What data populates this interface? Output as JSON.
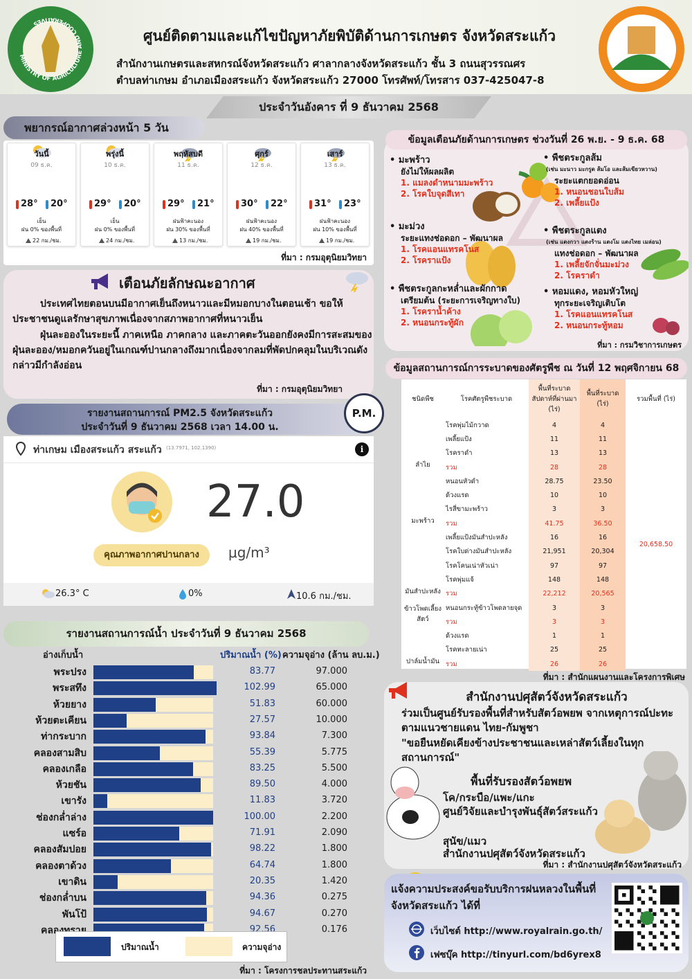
{
  "header": {
    "logo_text": "MINISTRY OF AGRICULTURE AND COOPERATIVES",
    "title": "ศูนย์ติดตามและแก้ไขปัญหาภัยพิบัติด้านการเกษตร จังหวัดสระแก้ว",
    "address_line1": "สำนักงานเกษตรและสหกรณ์จังหวัดสระแก้ว ศาลากลางจังหวัดสระแก้ว ชั้น 3 ถนนสุวรรณศร",
    "address_line2": "ตำบลท่าเกษม อำเภอเมืองสระแก้ว จังหวัดสระแก้ว 27000 โทรศัพท์/โทรสาร 037-425047-8",
    "date": "ประจำวันอังคาร ที่ 9 ธันวาคม 2568"
  },
  "weather": {
    "title": "พยากรณ์อากาศล่วงหน้า 5 วัน",
    "days": [
      {
        "day": "วันนี้",
        "date": "09 ธ.ค.",
        "max": "28°",
        "min": "20°",
        "condition": "เย็น",
        "rain": "ฝน 0% ของพื้นที่",
        "wind": "22 กม./ชม."
      },
      {
        "day": "พรุ่งนี้",
        "date": "10 ธ.ค.",
        "max": "29°",
        "min": "20°",
        "condition": "เย็น",
        "rain": "ฝน 0% ของพื้นที่",
        "wind": "24 กม./ชม."
      },
      {
        "day": "พฤหัสบดี",
        "date": "11 ธ.ค.",
        "max": "29°",
        "min": "21°",
        "condition": "ฝนฟ้าคะนอง",
        "rain": "ฝน 30% ของพื้นที่",
        "wind": "13 กม./ชม."
      },
      {
        "day": "ศุกร์",
        "date": "12 ธ.ค.",
        "max": "30°",
        "min": "22°",
        "condition": "ฝนฟ้าคะนอง",
        "rain": "ฝน 40% ของพื้นที่",
        "wind": "19 กม./ชม."
      },
      {
        "day": "เสาร์",
        "date": "13 ธ.ค.",
        "max": "31°",
        "min": "23°",
        "condition": "ฝนฟ้าคะนอง",
        "rain": "ฝน 10% ของพื้นที่",
        "wind": "19 กม./ชม."
      }
    ],
    "source": "ที่มา : กรมอุตุนิยมวิทยา"
  },
  "alert": {
    "title": "เตือนภัยลักษณะอากาศ",
    "paragraphs": [
      "ประเทศไทยตอนบนมีอากาศเย็นถึงหนาวและมีหมอกบางในตอนเช้า ขอให้ประชาชนดูแลรักษาสุขภาพเนื่องจากสภาพอากาศที่หนาวเย็น",
      "ฝุ่นละอองในระยะนี้ ภาคเหนือ ภาคกลาง และภาคตะวันออกยังคงมีการสะสมของฝุ่นละออง/หมอกควันอยู่ในเกณฑ์ปานกลางถึงมากเนื่องจากลมที่พัดปกคลุมในบริเวณดังกล่าวมีกำลังอ่อน"
    ],
    "source": "ที่มา : กรมอุตุนิยมวิทยา"
  },
  "pm25": {
    "title_line1": "รายงานสถานการณ์ PM2.5 จังหวัดสระแก้ว",
    "title_line2": "ประจำวันที่ 9 ธันวาคม 2568 เวลา 14.00 น.",
    "badge": "P.M.",
    "location": "ท่าเกษม เมืองสระแก้ว สระแก้ว",
    "coords": "(13.7971, 102.1390)",
    "value": "27.0",
    "unit": "μg/m³",
    "quality": "คุณภาพอากาศปานกลาง",
    "temperature": "26.3° C",
    "rain": "0%",
    "wind": "10.6 กม./ชม."
  },
  "water": {
    "title": "รายงานสถานการณ์น้ำ ประจำวันที่ 9 ธันวาคม 2568",
    "headers": [
      "อ่างเก็บน้ำ",
      "ปริมาณน้ำ (%)",
      "ความจุอ่าง (ล้าน ลบ.ม.)"
    ],
    "bar_color": "#1f3f86",
    "track_color": "#fbeec8",
    "rows": [
      {
        "name": "พระปรง",
        "percent": 83.77,
        "percent_label": "83.77",
        "capacity": "97.000"
      },
      {
        "name": "พระสทึง",
        "percent": 102.99,
        "percent_label": "102.99",
        "capacity": "65.000"
      },
      {
        "name": "ห้วยยาง",
        "percent": 51.83,
        "percent_label": "51.83",
        "capacity": "60.000"
      },
      {
        "name": "ห้วยตะเคียน",
        "percent": 27.57,
        "percent_label": "27.57",
        "capacity": "10.000"
      },
      {
        "name": "ท่ากระบาก",
        "percent": 93.84,
        "percent_label": "93.84",
        "capacity": "7.300"
      },
      {
        "name": "คลองสามสิบ",
        "percent": 55.39,
        "percent_label": "55.39",
        "capacity": "5.775"
      },
      {
        "name": "คลองเกลือ",
        "percent": 83.25,
        "percent_label": "83.25",
        "capacity": "5.500"
      },
      {
        "name": "ห้วยชัน",
        "percent": 89.5,
        "percent_label": "89.50",
        "capacity": "4.000"
      },
      {
        "name": "เขารัง",
        "percent": 11.83,
        "percent_label": "11.83",
        "capacity": "3.720"
      },
      {
        "name": "ช่องกล่ำล่าง",
        "percent": 100,
        "percent_label": "100.00",
        "capacity": "2.200"
      },
      {
        "name": "แซร์อ",
        "percent": 71.91,
        "percent_label": "71.91",
        "capacity": "2.090"
      },
      {
        "name": "คลองสัมปอย",
        "percent": 98.22,
        "percent_label": "98.22",
        "capacity": "1.800"
      },
      {
        "name": "คลองตาด้วง",
        "percent": 64.74,
        "percent_label": "64.74",
        "capacity": "1.800"
      },
      {
        "name": "เขาดิน",
        "percent": 20.35,
        "percent_label": "20.35",
        "capacity": "1.420"
      },
      {
        "name": "ช่องกล่ำบน",
        "percent": 94.36,
        "percent_label": "94.36",
        "capacity": "0.275"
      },
      {
        "name": "พันโป้",
        "percent": 94.67,
        "percent_label": "94.67",
        "capacity": "0.270"
      },
      {
        "name": "คลองทราย",
        "percent": 92.56,
        "percent_label": "92.56",
        "capacity": "0.176"
      }
    ],
    "legend": [
      "ปริมาณน้ำ",
      "ความจุอ่าง"
    ],
    "source": "ที่มา : โครงการชลประทานสระแก้ว"
  },
  "hazard": {
    "title": "ข้อมูลเตือนภัยด้านการเกษตร ช่วงวันที่ 26 พ.ย. - 9 ธ.ค. 68",
    "items": [
      {
        "crop": "มะพร้าว",
        "stage": "ยังไม่ให้ผลผลิต",
        "issues": [
          "1. แมลงดำหนามมะพร้าว",
          "2. โรคใบจุดสีเทา"
        ]
      },
      {
        "crop": "พืชตระกูลส้ม",
        "note": "(เช่น มะนาว มะกรูด ส้มโอ และส้มเขียวหวาน)",
        "stage": "ระยะแตกยอดอ่อน",
        "issues": [
          "1. หนอนชอนใบส้ม",
          "2. เพลี้ยแป้ง"
        ]
      },
      {
        "crop": "มะม่วง",
        "stage": "ระยะแทงช่อดอก – พัฒนาผล",
        "issues": [
          "1. โรคแอนแทรคโนส",
          "2. โรคราแป้ง"
        ]
      },
      {
        "crop": "พืชตระกูลแตง",
        "note": "(เช่น แตงกวา แตงร้าน แตงโม แตงไทย เมล่อน)",
        "stage": "แทงช่อดอก – พัฒนาผล",
        "issues": [
          "1. เพลี้ยจักจั่นมะม่วง",
          "2. โรคราดำ"
        ]
      },
      {
        "crop": "พืชตระกูลกะหล่ำและผักกาด",
        "stage": "เตรียมต้น (ระยะการเจริญทางใบ)",
        "issues": [
          "1. โรคราน้ำค้าง",
          "2. หนอนกระทู้ผัก"
        ]
      },
      {
        "crop": "หอมแดง, หอมหัวใหญ่",
        "stage": "ทุกระยะเจริญเติบโต",
        "issues": [
          "1. โรคแอนแทรคโนส",
          "2. หนอนกระทู้หอม"
        ]
      }
    ],
    "source": "ที่มา : กรมวิชาการเกษตร"
  },
  "outbreak": {
    "title": "ข้อมูลสถานการณ์การระบาดของศัตรูพืช ณ วันที่ 12 พฤศจิกายน 68",
    "headers": [
      "ชนิดพืช",
      "โรคศัตรูพืชระบาด",
      "พื้นที่ระบาดสัปดาห์ที่ผ่านมา (ไร่)",
      "พื้นที่ระบาด (ไร่)",
      "รวมพื้นที่ (ไร่)"
    ],
    "groups": [
      {
        "crop": "ลำไย",
        "rows": [
          [
            "โรคพุ่มไม้กวาด",
            "4",
            "4"
          ],
          [
            "เพลี้ยแป้ง",
            "11",
            "11"
          ],
          [
            "โรคราดำ",
            "13",
            "13"
          ],
          [
            "รวม",
            "28",
            "28"
          ]
        ]
      },
      {
        "crop": "มะพร้าว",
        "rows": [
          [
            "หนอนหัวดำ",
            "28.75",
            "23.50"
          ],
          [
            "ด้วงแรด",
            "10",
            "10"
          ],
          [
            "ไรสี่ขามะพร้าว",
            "3",
            "3"
          ],
          [
            "รวม",
            "41.75",
            "36.50"
          ]
        ]
      },
      {
        "crop": "มันสำปะหลัง",
        "rows": [
          [
            "เพลี้ยแป้งมันสำปะหลัง",
            "16",
            "16"
          ],
          [
            "โรคใบด่างมันสำปะหลัง",
            "21,951",
            "20,304"
          ],
          [
            "โรคโคนเน่าหัวเน่า",
            "97",
            "97"
          ],
          [
            "โรคพุ่มแจ้",
            "148",
            "148"
          ],
          [
            "รวม",
            "22,212",
            "20,565"
          ]
        ]
      },
      {
        "crop": "ข้าวโพดเลี้ยงสัตว์",
        "rows": [
          [
            "หนอนกระทู้ข้าวโพดลายจุด",
            "3",
            "3"
          ],
          [
            "รวม",
            "3",
            "3"
          ]
        ]
      },
      {
        "crop": "ปาล์มน้ำมัน",
        "rows": [
          [
            "ด้วงแรด",
            "1",
            "1"
          ],
          [
            "โรคทะลายเน่า",
            "25",
            "25"
          ],
          [
            "รวม",
            "26",
            "26"
          ]
        ]
      }
    ],
    "total_area": "20,658.50",
    "source": "ที่มา : สำนักแผนงานและโครงการพิเศษ"
  },
  "livestock": {
    "title": "สำนักงานปศุสัตว์จังหวัดสระแก้ว",
    "intro": "ร่วมเป็นศูนย์รับรองพื้นที่สำหรับสัตว์อพยพ จากเหตุการณ์ปะทะตามแนวชายแดน ไทย-กัมพูชา",
    "quote": "\"ขอยืนหยัดเคียงข้างประชาชนและเหล่าสัตว์เลี้ยงในทุกสถานการณ์\"",
    "subtitle": "พื้นที่รับรองสัตว์อพยพ",
    "groups": [
      {
        "animals": "โค/กระบือ/แพะ/แกะ",
        "place": "ศูนย์วิจัยและบำรุงพันธุ์สัตว์สระแก้ว"
      },
      {
        "animals": "สุนัข/แมว",
        "place": "สำนักงานปศุสัตว์จังหวัดสระแก้ว"
      }
    ],
    "source": "ที่มา : สำนักงานปศุสัตว์จังหวัดสระแก้ว"
  },
  "royal_rain": {
    "title": "แจ้งความประสงค์ขอรับบริการฝนหลวงในพื้นที่จังหวัดสระแก้ว ได้ที่",
    "website": "เว็บไซต์ http://www.royalrain.go.th/",
    "facebook": "เฟซบุ๊ค http://tinyurl.com/bd6yrex8"
  }
}
